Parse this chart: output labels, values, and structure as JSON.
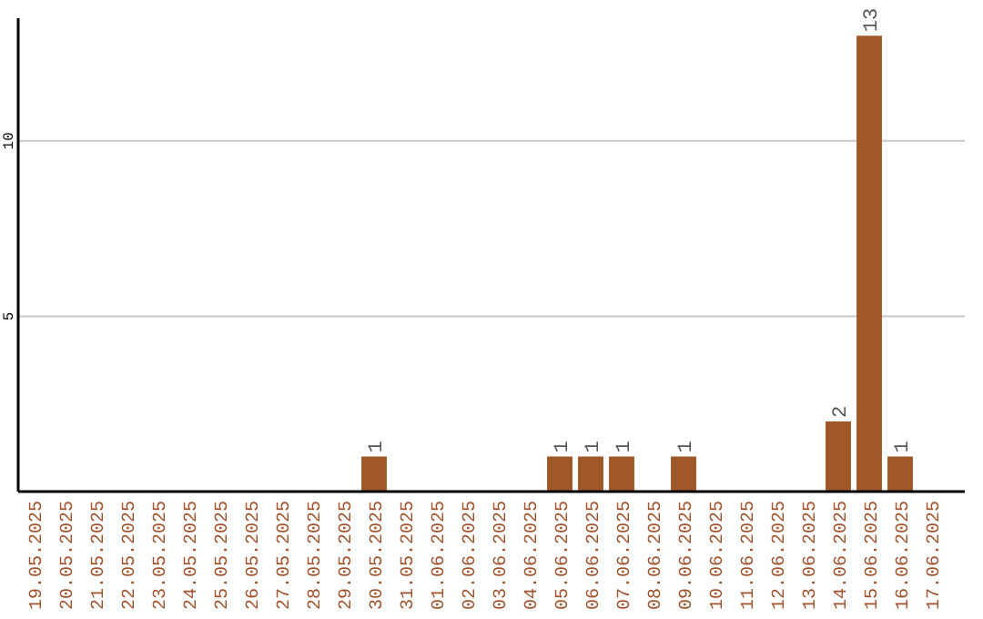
{
  "chart_data": {
    "type": "bar",
    "categories": [
      "19.05.2025",
      "20.05.2025",
      "21.05.2025",
      "22.05.2025",
      "23.05.2025",
      "24.05.2025",
      "25.05.2025",
      "26.05.2025",
      "27.05.2025",
      "28.05.2025",
      "29.05.2025",
      "30.05.2025",
      "31.05.2025",
      "01.06.2025",
      "02.06.2025",
      "03.06.2025",
      "04.06.2025",
      "05.06.2025",
      "06.06.2025",
      "07.06.2025",
      "08.06.2025",
      "09.06.2025",
      "10.06.2025",
      "11.06.2025",
      "12.06.2025",
      "13.06.2025",
      "14.06.2025",
      "15.06.2025",
      "16.06.2025",
      "17.06.2025"
    ],
    "values": [
      0,
      0,
      0,
      0,
      0,
      0,
      0,
      0,
      0,
      0,
      0,
      1,
      0,
      0,
      0,
      0,
      0,
      1,
      1,
      1,
      0,
      1,
      0,
      0,
      0,
      0,
      2,
      13,
      1,
      0
    ],
    "value_labels": [
      null,
      null,
      null,
      null,
      null,
      null,
      null,
      null,
      null,
      null,
      null,
      "1",
      null,
      null,
      null,
      null,
      null,
      "1",
      "1",
      "1",
      null,
      "1",
      null,
      null,
      null,
      null,
      "2",
      "13",
      "1",
      null
    ],
    "color": "#a0572a",
    "ylim": [
      0,
      13.5
    ],
    "yticks": [
      5,
      10
    ],
    "grid": "y"
  }
}
